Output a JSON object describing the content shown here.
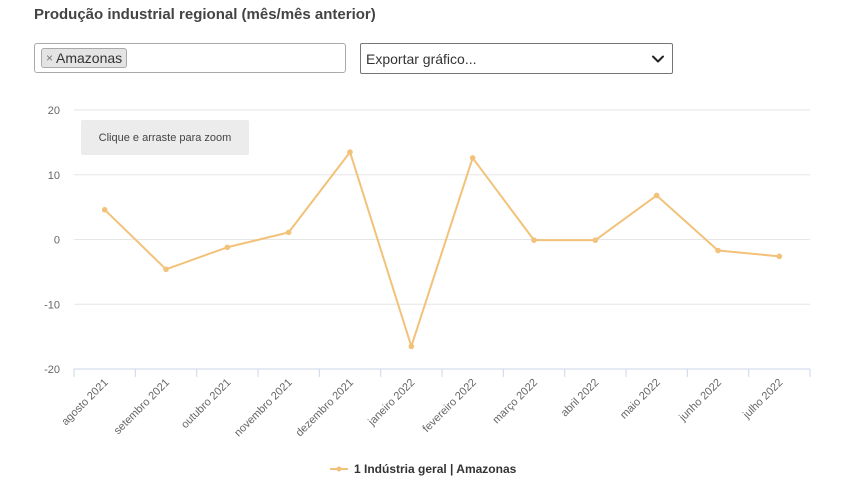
{
  "title": "Produção industrial regional (mês/mês anterior)",
  "region_filter": {
    "selected_tag": "Amazonas",
    "remove_glyph": "×"
  },
  "export": {
    "label": "Exportar gráfico...",
    "icon": "chevron-down-icon"
  },
  "zoom_hint": "Clique e arraste para zoom",
  "legend": {
    "series_label": "1 Indústria geral | Amazonas",
    "color": "#f2c27a"
  },
  "chart_data": {
    "type": "line",
    "categories": [
      "agosto 2021",
      "setembro 2021",
      "outubro 2021",
      "novembro 2021",
      "dezembro 2021",
      "janeiro 2022",
      "fevereiro 2022",
      "março 2022",
      "abril 2022",
      "maio 2022",
      "junho 2022",
      "julho 2022"
    ],
    "series": [
      {
        "name": "1 Indústria geral | Amazonas",
        "color": "#f2c27a",
        "values": [
          4.6,
          -4.6,
          -1.2,
          1.1,
          13.5,
          -16.5,
          12.6,
          -0.1,
          -0.1,
          6.8,
          -1.7,
          -2.6
        ]
      }
    ],
    "y_ticks": [
      20,
      10,
      0,
      -10,
      -20
    ],
    "ylim": [
      -20,
      20
    ],
    "grid": true,
    "legend_position": "bottom-center"
  }
}
